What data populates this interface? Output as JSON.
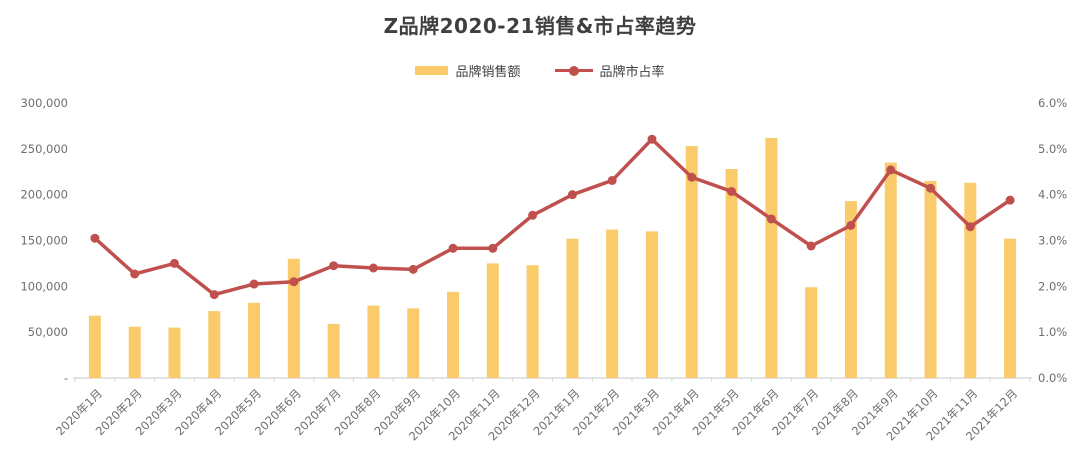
{
  "title": "Z品牌2020-21销售&市占率趋势",
  "legend": {
    "sales_label": "品牌销售额",
    "share_label": "品牌市占率"
  },
  "colors": {
    "bar": "#FACB6B",
    "line": "#C0504D",
    "axis": "#D9D9D9",
    "tick_text": "#6E6E6E",
    "title_text": "#3F3F3F"
  },
  "chart_data": {
    "type": "combo-bar-line",
    "title": "Z品牌2020-21销售&市占率趋势",
    "categories": [
      "2020年1月",
      "2020年2月",
      "2020年3月",
      "2020年4月",
      "2020年5月",
      "2020年6月",
      "2020年7月",
      "2020年8月",
      "2020年9月",
      "2020年10月",
      "2020年11月",
      "2020年12月",
      "2021年1月",
      "2021年2月",
      "2021年3月",
      "2021年4月",
      "2021年5月",
      "2021年6月",
      "2021年7月",
      "2021年8月",
      "2021年9月",
      "2021年10月",
      "2021年11月",
      "2021年12月"
    ],
    "series": [
      {
        "name": "品牌销售额",
        "type": "bar",
        "axis": "left",
        "color": "#FACB6B",
        "values": [
          68000,
          56000,
          55000,
          73000,
          82000,
          130000,
          59000,
          79000,
          76000,
          94000,
          125000,
          123000,
          152000,
          162000,
          160000,
          253000,
          228000,
          262000,
          99000,
          193000,
          235000,
          215000,
          213000,
          152000
        ]
      },
      {
        "name": "品牌市占率",
        "type": "line",
        "axis": "right",
        "color": "#C0504D",
        "unit": "%",
        "values": [
          3.05,
          2.27,
          2.5,
          1.82,
          2.05,
          2.1,
          2.45,
          2.4,
          2.37,
          2.83,
          2.83,
          3.55,
          4.0,
          4.31,
          5.21,
          4.38,
          4.07,
          3.47,
          2.88,
          3.33,
          4.54,
          4.14,
          3.3,
          3.88
        ]
      }
    ],
    "y_left": {
      "min": 0,
      "max": 300000,
      "step": 50000,
      "tick_labels": [
        "-",
        "50,000",
        "100,000",
        "150,000",
        "200,000",
        "250,000",
        "300,000"
      ]
    },
    "y_right": {
      "min": 0,
      "max": 6,
      "step": 1,
      "tick_labels": [
        "0.0%",
        "1.0%",
        "2.0%",
        "3.0%",
        "4.0%",
        "5.0%",
        "6.0%"
      ]
    },
    "grid": false,
    "legend_position": "top",
    "x_label_rotation": -45
  }
}
